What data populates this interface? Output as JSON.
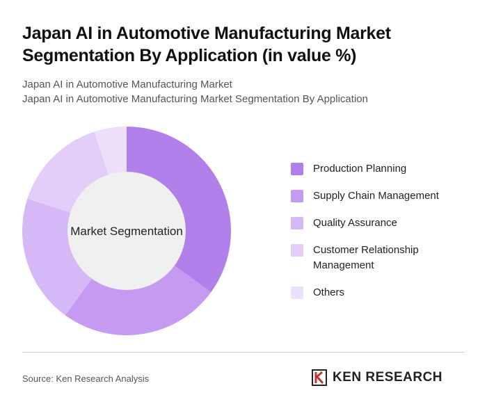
{
  "chart_data": {
    "type": "donut",
    "title": "Japan AI in Automotive Manufacturing Market Segmentation By Application (in value %)",
    "subtitles": [
      "Japan AI in Automotive Manufacturing Market",
      "Japan AI in Automotive Manufacturing Market Segmentation By Application"
    ],
    "center_label": "Market Segmentation",
    "categories": [
      "Production Planning",
      "Supply Chain Management",
      "Quality Assurance",
      "Customer Relationship Management",
      "Others"
    ],
    "values": [
      35,
      25,
      20,
      15,
      5
    ],
    "colors": [
      "#b07fe9",
      "#c49bf0",
      "#d5b8f5",
      "#e2cef8",
      "#ece0fa"
    ],
    "source": "Source: Ken Research Analysis",
    "logo": "KEN RESEARCH"
  }
}
